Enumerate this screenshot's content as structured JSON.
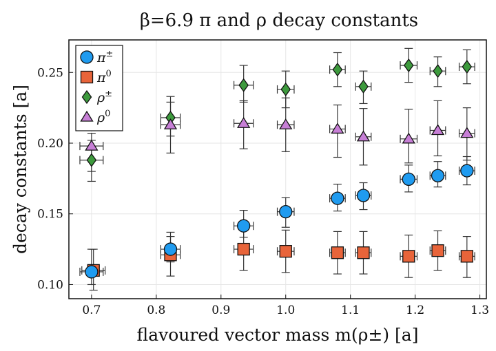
{
  "chart_data": {
    "type": "scatter",
    "title": "β=6.9    π and ρ decay constants",
    "xlabel": "flavoured vector mass m(ρ±) [a]",
    "ylabel": "decay constants [a]",
    "xlim": [
      0.665,
      1.31
    ],
    "ylim": [
      0.09,
      0.273
    ],
    "xticks": [
      "0.7",
      "0.8",
      "0.9",
      "1.0",
      "1.1",
      "1.2",
      "1.3"
    ],
    "yticks": [
      "0.10",
      "0.15",
      "0.20",
      "0.25"
    ],
    "grid": true,
    "legend_position": "top-left",
    "series": [
      {
        "name": "π±",
        "label_base": "π",
        "label_sup": "±",
        "marker": "circle",
        "color": "#1f9bf0",
        "points": [
          {
            "x": 0.7,
            "xerr": 0.018,
            "y": 0.109,
            "yerr_lo": 0.009,
            "yerr_hi": 0.016
          },
          {
            "x": 0.822,
            "xerr": 0.015,
            "y": 0.125,
            "yerr_lo": 0.009,
            "yerr_hi": 0.012
          },
          {
            "x": 0.935,
            "xerr": 0.015,
            "y": 0.1415,
            "yerr_lo": 0.008,
            "yerr_hi": 0.011
          },
          {
            "x": 1.0,
            "xerr": 0.013,
            "y": 0.1515,
            "yerr_lo": 0.011,
            "yerr_hi": 0.01
          },
          {
            "x": 1.08,
            "xerr": 0.012,
            "y": 0.161,
            "yerr_lo": 0.009,
            "yerr_hi": 0.01
          },
          {
            "x": 1.12,
            "xerr": 0.012,
            "y": 0.163,
            "yerr_lo": 0.01,
            "yerr_hi": 0.009
          },
          {
            "x": 1.19,
            "xerr": 0.013,
            "y": 0.1745,
            "yerr_lo": 0.009,
            "yerr_hi": 0.01
          },
          {
            "x": 1.235,
            "xerr": 0.012,
            "y": 0.177,
            "yerr_lo": 0.008,
            "yerr_hi": 0.01
          },
          {
            "x": 1.28,
            "xerr": 0.012,
            "y": 0.1805,
            "yerr_lo": 0.01,
            "yerr_hi": 0.01
          }
        ]
      },
      {
        "name": "π0",
        "label_base": "π",
        "label_sup": "0",
        "marker": "square",
        "color": "#e8643a",
        "points": [
          {
            "x": 0.703,
            "xerr": 0.018,
            "y": 0.11,
            "yerr_lo": 0.014,
            "yerr_hi": 0.015
          },
          {
            "x": 0.822,
            "xerr": 0.015,
            "y": 0.121,
            "yerr_lo": 0.015,
            "yerr_hi": 0.013
          },
          {
            "x": 0.935,
            "xerr": 0.015,
            "y": 0.125,
            "yerr_lo": 0.015,
            "yerr_hi": 0.015
          },
          {
            "x": 1.0,
            "xerr": 0.013,
            "y": 0.1235,
            "yerr_lo": 0.015,
            "yerr_hi": 0.015
          },
          {
            "x": 1.08,
            "xerr": 0.012,
            "y": 0.1225,
            "yerr_lo": 0.015,
            "yerr_hi": 0.015
          },
          {
            "x": 1.12,
            "xerr": 0.012,
            "y": 0.1225,
            "yerr_lo": 0.015,
            "yerr_hi": 0.015
          },
          {
            "x": 1.19,
            "xerr": 0.013,
            "y": 0.12,
            "yerr_lo": 0.015,
            "yerr_hi": 0.015
          },
          {
            "x": 1.235,
            "xerr": 0.012,
            "y": 0.124,
            "yerr_lo": 0.014,
            "yerr_hi": 0.014
          },
          {
            "x": 1.28,
            "xerr": 0.012,
            "y": 0.12,
            "yerr_lo": 0.015,
            "yerr_hi": 0.014
          }
        ]
      },
      {
        "name": "ρ±",
        "label_base": "ρ",
        "label_sup": "±",
        "marker": "diamond",
        "color": "#3d9a3d",
        "points": [
          {
            "x": 0.7,
            "xerr": 0.018,
            "y": 0.188,
            "yerr_lo": 0.015,
            "yerr_hi": 0.014
          },
          {
            "x": 0.822,
            "xerr": 0.015,
            "y": 0.218,
            "yerr_lo": 0.013,
            "yerr_hi": 0.015
          },
          {
            "x": 0.935,
            "xerr": 0.015,
            "y": 0.241,
            "yerr_lo": 0.012,
            "yerr_hi": 0.014
          },
          {
            "x": 1.0,
            "xerr": 0.013,
            "y": 0.238,
            "yerr_lo": 0.013,
            "yerr_hi": 0.013
          },
          {
            "x": 1.08,
            "xerr": 0.012,
            "y": 0.252,
            "yerr_lo": 0.012,
            "yerr_hi": 0.012
          },
          {
            "x": 1.12,
            "xerr": 0.012,
            "y": 0.24,
            "yerr_lo": 0.012,
            "yerr_hi": 0.011
          },
          {
            "x": 1.19,
            "xerr": 0.013,
            "y": 0.255,
            "yerr_lo": 0.012,
            "yerr_hi": 0.012
          },
          {
            "x": 1.235,
            "xerr": 0.012,
            "y": 0.251,
            "yerr_lo": 0.011,
            "yerr_hi": 0.01
          },
          {
            "x": 1.28,
            "xerr": 0.012,
            "y": 0.254,
            "yerr_lo": 0.012,
            "yerr_hi": 0.012
          }
        ]
      },
      {
        "name": "ρ0",
        "label_base": "ρ",
        "label_sup": "0",
        "marker": "triangle",
        "color": "#c77fd6",
        "points": [
          {
            "x": 0.7,
            "xerr": 0.018,
            "y": 0.198,
            "yerr_lo": 0.018,
            "yerr_hi": 0.009
          },
          {
            "x": 0.822,
            "xerr": 0.015,
            "y": 0.213,
            "yerr_lo": 0.02,
            "yerr_hi": 0.016
          },
          {
            "x": 0.935,
            "xerr": 0.015,
            "y": 0.214,
            "yerr_lo": 0.018,
            "yerr_hi": 0.016
          },
          {
            "x": 1.0,
            "xerr": 0.013,
            "y": 0.213,
            "yerr_lo": 0.019,
            "yerr_hi": 0.019
          },
          {
            "x": 1.08,
            "xerr": 0.012,
            "y": 0.21,
            "yerr_lo": 0.02,
            "yerr_hi": 0.017
          },
          {
            "x": 1.12,
            "xerr": 0.012,
            "y": 0.2045,
            "yerr_lo": 0.02,
            "yerr_hi": 0.02
          },
          {
            "x": 1.19,
            "xerr": 0.013,
            "y": 0.203,
            "yerr_lo": 0.017,
            "yerr_hi": 0.021
          },
          {
            "x": 1.235,
            "xerr": 0.012,
            "y": 0.209,
            "yerr_lo": 0.018,
            "yerr_hi": 0.021
          },
          {
            "x": 1.28,
            "xerr": 0.012,
            "y": 0.207,
            "yerr_lo": 0.019,
            "yerr_hi": 0.018
          }
        ]
      }
    ]
  }
}
